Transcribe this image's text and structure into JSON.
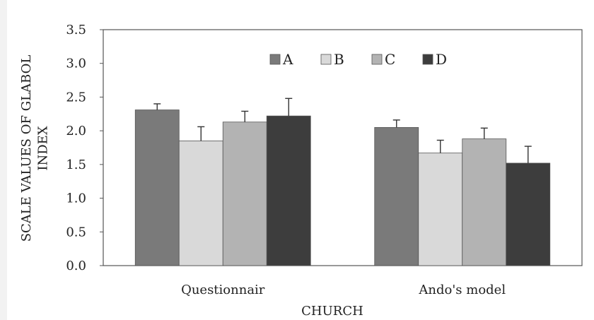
{
  "chart_data": {
    "type": "bar",
    "categories": [
      "Questionnair",
      "Ando's model"
    ],
    "series": [
      {
        "name": "A",
        "values": [
          2.31,
          2.05
        ],
        "errors": [
          0.09,
          0.11
        ],
        "color": "#7a7a7a"
      },
      {
        "name": "B",
        "values": [
          1.85,
          1.67
        ],
        "errors": [
          0.21,
          0.19
        ],
        "color": "#d9d9d9"
      },
      {
        "name": "C",
        "values": [
          2.13,
          1.88
        ],
        "errors": [
          0.16,
          0.16
        ],
        "color": "#b3b3b3"
      },
      {
        "name": "D",
        "values": [
          2.22,
          1.52
        ],
        "errors": [
          0.26,
          0.25
        ],
        "color": "#3d3d3d"
      }
    ],
    "xlabel": "CHURCH",
    "ylabel": "SCALE VALUES OF GLABOL INDEX",
    "ylim": [
      0,
      3.5
    ],
    "yticks": [
      "0.0",
      "0.5",
      "1.0",
      "1.5",
      "2.0",
      "2.5",
      "3.0",
      "3.5"
    ],
    "legend_position": "top-center",
    "grid": false
  }
}
